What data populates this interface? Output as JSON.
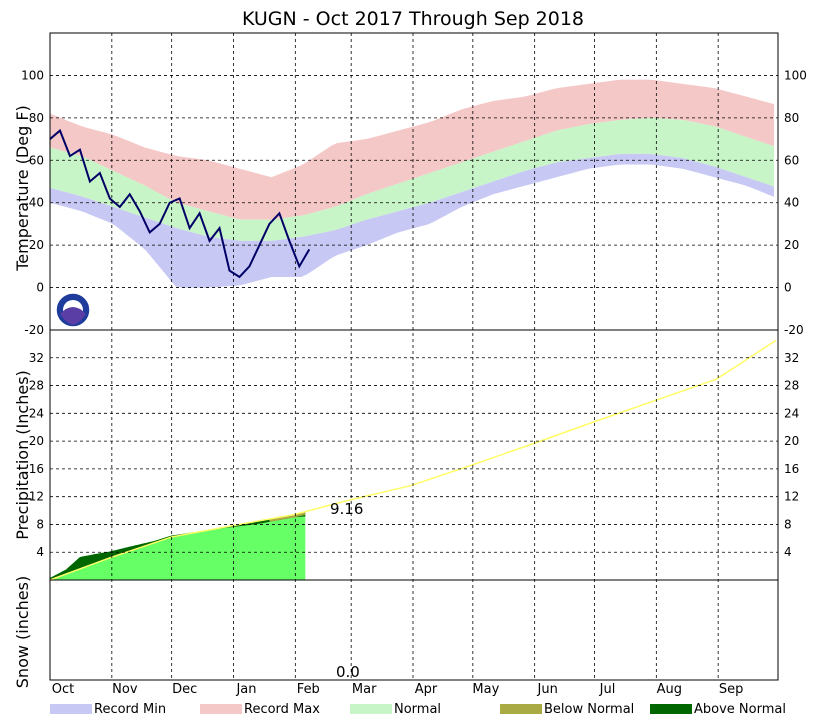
{
  "chart_data": {
    "type": "line",
    "title": "KUGN - Oct 2017 Through Sep 2018",
    "months": [
      "Oct",
      "Nov",
      "Dec",
      "Jan",
      "Feb",
      "Mar",
      "Apr",
      "May",
      "Jun",
      "Jul",
      "Aug",
      "Sep"
    ],
    "panels": [
      {
        "id": "temperature",
        "ylabel": "Temperature (Deg F)",
        "ylim": [
          -20,
          120
        ],
        "ticks": [
          -20,
          0,
          20,
          40,
          60,
          80,
          100
        ],
        "tick_labels": [
          "-20",
          "0",
          "20",
          "40",
          "60",
          "80",
          "100"
        ],
        "grid": true,
        "series": [
          {
            "name": "Record Min",
            "color": "#c8c8f5",
            "values": [
              40,
              36,
              30,
              18,
              0,
              0,
              1,
              5,
              5,
              15,
              20,
              26,
              30,
              38,
              44,
              48,
              52,
              56,
              58,
              58,
              56,
              52,
              48,
              42
            ]
          },
          {
            "name": "Record Max",
            "color": "#f5c8c8",
            "values": [
              82,
              76,
              72,
              66,
              62,
              60,
              56,
              52,
              58,
              68,
              70,
              74,
              78,
              84,
              88,
              90,
              94,
              96,
              98,
              98,
              96,
              94,
              90,
              86
            ]
          },
          {
            "name": "Normal",
            "color": "#c8f5c8",
            "low": [
              47,
              43,
              38,
              33,
              28,
              24,
              22,
              22,
              24,
              27,
              32,
              36,
              40,
              45,
              50,
              55,
              59,
              61,
              63,
              63,
              61,
              57,
              52,
              47
            ],
            "high": [
              66,
              62,
              55,
              48,
              40,
              36,
              32,
              32,
              34,
              38,
              44,
              49,
              54,
              59,
              64,
              69,
              74,
              77,
              79,
              80,
              79,
              76,
              71,
              66
            ]
          },
          {
            "name": "Observed",
            "color": "#000066",
            "x_days": [
              0,
              5,
              10,
              15,
              20,
              25,
              30,
              35,
              40,
              45,
              50,
              55,
              60,
              65,
              70,
              75,
              80,
              85,
              90,
              95,
              100,
              105,
              110,
              115,
              120,
              125,
              130
            ],
            "values": [
              70,
              74,
              62,
              65,
              50,
              54,
              42,
              38,
              44,
              36,
              26,
              30,
              40,
              42,
              28,
              35,
              22,
              28,
              8,
              5,
              10,
              20,
              30,
              35,
              22,
              10,
              18
            ]
          }
        ]
      },
      {
        "id": "precipitation",
        "ylabel": "Precipitation (Inches)",
        "ylim": [
          0,
          36
        ],
        "ticks": [
          4,
          8,
          12,
          16,
          20,
          24,
          28,
          32
        ],
        "tick_labels": [
          "4",
          "8",
          "12",
          "16",
          "20",
          "24",
          "28",
          "32"
        ],
        "grid": true,
        "series": [
          {
            "name": "Normal",
            "color": "#ffff66",
            "x_days": [
              0,
              30,
              61,
              91,
              122,
              150,
              181,
              211,
              242,
              272,
              303,
              334,
              364
            ],
            "values": [
              0,
              3.2,
              6.2,
              7.8,
              9.4,
              11.5,
              13.6,
              16.5,
              19.6,
              22.7,
              25.8,
              28.9,
              34.5
            ]
          },
          {
            "name": "Observed",
            "color": "#66ff66",
            "x_days": [
              0,
              8,
              15,
              22,
              30,
              40,
              52,
              61,
              75,
              91,
              105,
              122,
              128
            ],
            "values": [
              0.3,
              1.5,
              3.3,
              3.7,
              4.1,
              4.8,
              5.6,
              6.4,
              7.0,
              7.6,
              8.1,
              9.0,
              9.16
            ]
          },
          {
            "name": "Above Normal",
            "color": "#006600",
            "x_days": [
              0,
              8,
              15,
              22,
              30,
              40,
              52,
              61,
              75,
              91,
              105,
              122,
              128
            ],
            "values": [
              0.3,
              1.5,
              3.3,
              3.7,
              4.1,
              4.8,
              5.6,
              6.4,
              7.0,
              7.6,
              8.1,
              9.0,
              9.16
            ]
          },
          {
            "name": "Below Normal",
            "color": "#aaaa44",
            "x_days": [
              110,
              122,
              128
            ],
            "values": [
              8.6,
              9.2,
              9.6
            ]
          }
        ],
        "annotation": "9.16"
      },
      {
        "id": "snow",
        "ylabel": "Snow (inches)",
        "ylim": [
          0,
          1
        ],
        "grid": true,
        "annotation": "0.0"
      }
    ],
    "legend": {
      "placement": "bottom",
      "entries": [
        {
          "label": "Record Min",
          "color": "#c8c8f5"
        },
        {
          "label": "Record Max",
          "color": "#f5c8c8"
        },
        {
          "label": "Normal",
          "color": "#c8f5c8"
        },
        {
          "label": "Below Normal",
          "color": "#aaaa44"
        },
        {
          "label": "Above Normal",
          "color": "#006600"
        }
      ]
    },
    "logo": "noaa-logo"
  }
}
